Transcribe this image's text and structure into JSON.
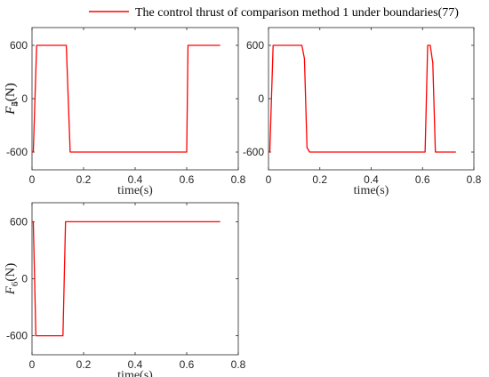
{
  "legend": {
    "label": "The control thrust of comparison method 1 under boundaries(77)",
    "color": "#ff0000"
  },
  "chart_data": [
    {
      "type": "line",
      "xlabel": "time(s)",
      "ylabel": {
        "symbol": "F",
        "sub": "4",
        "unit": "(N)"
      },
      "xlim": [
        0,
        0.8
      ],
      "ylim": [
        -800,
        800
      ],
      "xticks": [
        0,
        0.2,
        0.4,
        0.6,
        0.8
      ],
      "xtick_labels": [
        "0",
        "0.2",
        "0.4",
        "0.6",
        "0.8"
      ],
      "yticks": [
        600,
        0,
        -600
      ],
      "ytick_labels": [
        "600",
        "0",
        "-600"
      ],
      "series": [
        {
          "x": [
            0,
            0.005,
            0.018,
            0.133,
            0.148,
            0.6,
            0.605,
            0.73
          ],
          "y": [
            -600,
            -600,
            600,
            600,
            -600,
            -600,
            600,
            600
          ]
        }
      ]
    },
    {
      "type": "line",
      "xlabel": "time(s)",
      "ylabel": {
        "symbol": "F",
        "sub": "5",
        "unit": "(N)"
      },
      "xlim": [
        0,
        0.8
      ],
      "ylim": [
        -800,
        800
      ],
      "xticks": [
        0,
        0.2,
        0.4,
        0.6,
        0.8
      ],
      "xtick_labels": [
        "0",
        "0.2",
        "0.4",
        "0.6",
        "0.8"
      ],
      "yticks": [
        600,
        0,
        -600
      ],
      "ytick_labels": [
        "600",
        "0",
        "-600"
      ],
      "series": [
        {
          "x": [
            0,
            0.005,
            0.018,
            0.13,
            0.14,
            0.15,
            0.16,
            0.17,
            0.61,
            0.62,
            0.63,
            0.64,
            0.65,
            0.73
          ],
          "y": [
            -600,
            -600,
            600,
            600,
            450,
            -550,
            -600,
            -600,
            -600,
            600,
            600,
            400,
            -600,
            -600
          ]
        }
      ]
    },
    {
      "type": "line",
      "xlabel": "time(s)",
      "ylabel": {
        "symbol": "F",
        "sub": "6",
        "unit": "(N)"
      },
      "xlim": [
        0,
        0.8
      ],
      "ylim": [
        -800,
        800
      ],
      "xticks": [
        0,
        0.2,
        0.4,
        0.6,
        0.8
      ],
      "xtick_labels": [
        "0",
        "0.2",
        "0.4",
        "0.6",
        "0.8"
      ],
      "yticks": [
        600,
        0,
        -600
      ],
      "ytick_labels": [
        "600",
        "0",
        "-600"
      ],
      "series": [
        {
          "x": [
            0,
            0.005,
            0.015,
            0.12,
            0.13,
            0.73
          ],
          "y": [
            600,
            600,
            -600,
            -600,
            600,
            600
          ]
        }
      ]
    }
  ]
}
